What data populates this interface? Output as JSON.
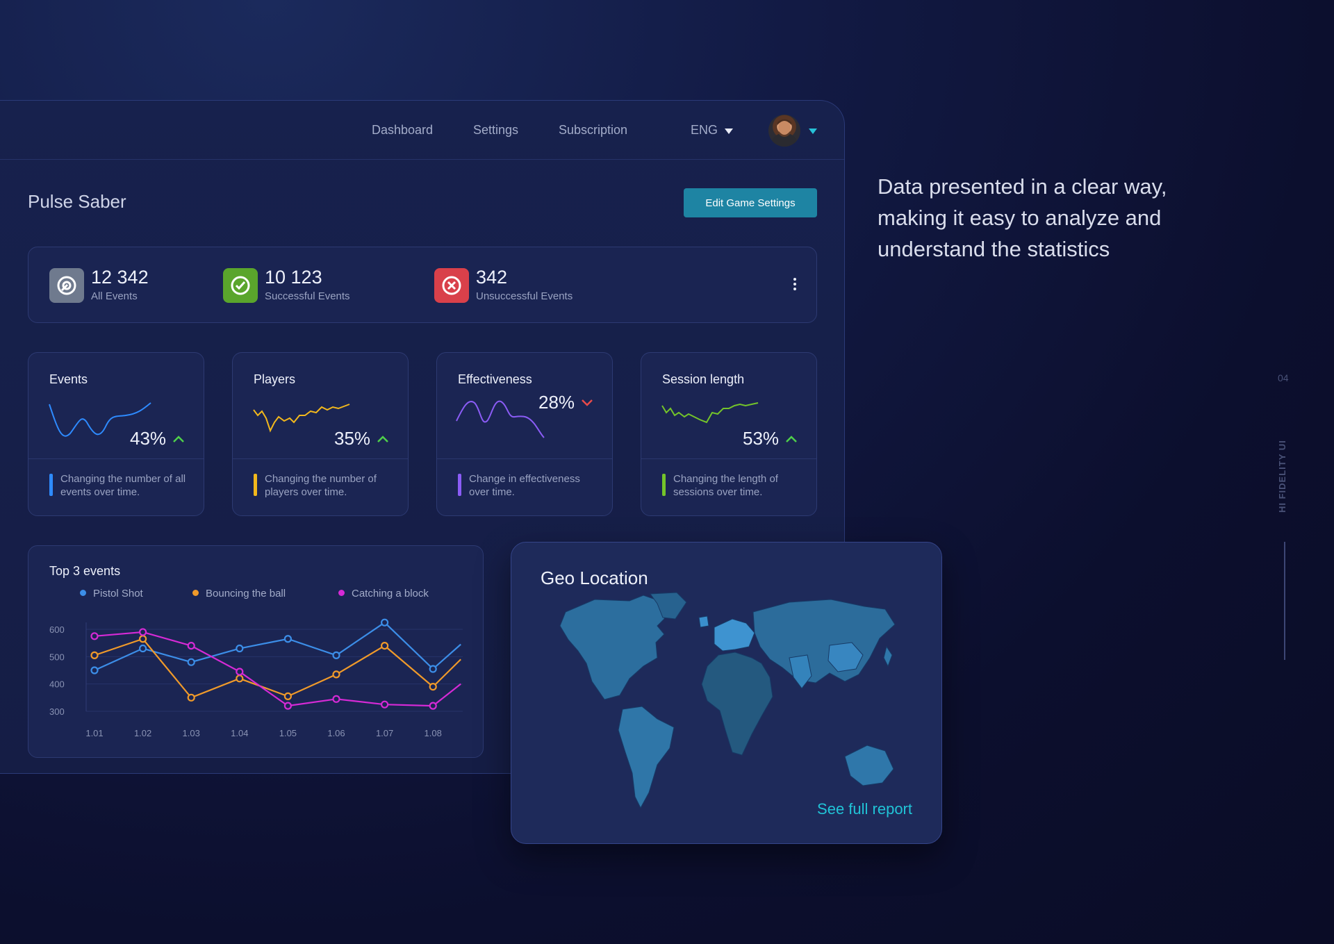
{
  "nav": {
    "items": [
      "Dashboard",
      "Settings",
      "Subscription"
    ],
    "lang": "ENG"
  },
  "page": {
    "title": "Pulse Saber",
    "edit_button": "Edit Game Settings"
  },
  "summary": [
    {
      "value": "12 342",
      "label": "All Events",
      "color": "#6f7a8e",
      "icon": "target-icon"
    },
    {
      "value": "10 123",
      "label": "Successful Events",
      "color": "#5aa52c",
      "icon": "target-check-icon"
    },
    {
      "value": "342",
      "label": "Unsuccessful Events",
      "color": "#d9404a",
      "icon": "target-cross-icon"
    }
  ],
  "cards": [
    {
      "title": "Events",
      "percent": "43%",
      "trend": "up",
      "color": "#2e8bff",
      "desc": "Changing the number of all events over time."
    },
    {
      "title": "Players",
      "percent": "35%",
      "trend": "up",
      "color": "#f2b81c",
      "desc": "Changing the number of players over time."
    },
    {
      "title": "Effectiveness",
      "percent": "28%",
      "trend": "down",
      "color": "#8b5cf6",
      "desc": "Change in effectiveness over time."
    },
    {
      "title": "Session length",
      "percent": "53%",
      "trend": "up",
      "color": "#74c42a",
      "desc": "Changing the length of sessions over time."
    }
  ],
  "top3": {
    "title": "Top 3 events",
    "chart_data": {
      "type": "line",
      "title": "Top 3 events",
      "categories": [
        "1.01",
        "1.02",
        "1.03",
        "1.04",
        "1.05",
        "1.06",
        "1.07",
        "1.08"
      ],
      "yticks": [
        300,
        400,
        500,
        600
      ],
      "ylim": [
        300,
        600
      ],
      "legend": "top",
      "series": [
        {
          "name": "Pistol Shot",
          "color": "#3c8ee8",
          "values": [
            450,
            530,
            480,
            530,
            565,
            505,
            625,
            455
          ]
        },
        {
          "name": "Bouncing the ball",
          "color": "#f09a2a",
          "values": [
            505,
            565,
            350,
            420,
            355,
            435,
            540,
            390
          ]
        },
        {
          "name": "Catching a block",
          "color": "#d62ad6",
          "values": [
            575,
            590,
            540,
            445,
            320,
            345,
            325,
            320
          ]
        }
      ]
    }
  },
  "geo": {
    "title": "Geo Location",
    "link": "See full report"
  },
  "tagline": "Data presented in a clear way, making it easy to analyze and understand the statistics",
  "side": {
    "number": "04",
    "label": "HI FIDELITY UI"
  },
  "colors": {
    "accent": "#1e84a3",
    "link": "#21c3d6",
    "up": "#4fd04a",
    "down": "#e84a4a"
  }
}
